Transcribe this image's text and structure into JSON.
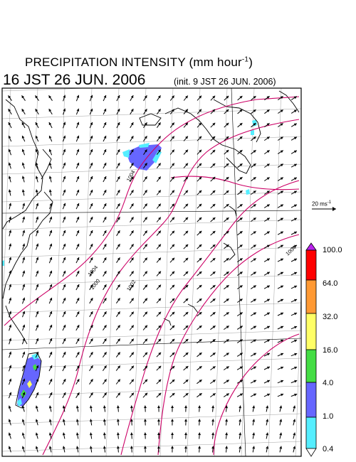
{
  "header": {
    "title": "PRECIPITATION INTENSITY (mm hour",
    "title_exponent": "-1",
    "title_close": ")",
    "valid_time": "16 JST 26 JUN. 2006",
    "init_time": "(init. 9 JST 26 JUN. 2006)"
  },
  "vector_scale": {
    "label": "20 ms",
    "label_exponent": "-1"
  },
  "colorbar": {
    "ticks": [
      "100.0",
      "64.0",
      "32.0",
      "16.0",
      "4.0",
      "1.0",
      "0.4"
    ],
    "colors": [
      "#ff0000",
      "#ff9933",
      "#ffff66",
      "#44dd44",
      "#6666ff",
      "#55eeff"
    ],
    "over_color": "#bb22ee"
  },
  "isobar_labels": [
    "1004",
    "1002",
    "1000",
    "1004",
    "1004"
  ],
  "colors": {
    "isobar": "#cc0066",
    "coast": "#000000",
    "grid": "#777777"
  }
}
